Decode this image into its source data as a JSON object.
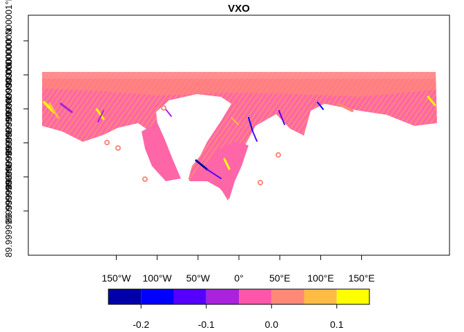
{
  "map": {
    "title": "VXO",
    "x_ticks": [
      {
        "value": -150,
        "label": "150°W"
      },
      {
        "value": -100,
        "label": "100°W"
      },
      {
        "value": -50,
        "label": "50°W"
      },
      {
        "value": 0,
        "label": "0°"
      },
      {
        "value": 50,
        "label": "50°E"
      },
      {
        "value": 100,
        "label": "100°E"
      },
      {
        "value": 150,
        "label": "150°E"
      }
    ],
    "y_ticks": [
      "89.99999999999998°N",
      "89.99999999999999°N",
      "89.99999999999999°N",
      "89.99999999999999°N",
      "90.00000000000000°N",
      "90.00000000000001°N"
    ],
    "legend": {
      "breaks": [
        -0.25,
        -0.2,
        -0.15,
        -0.1,
        -0.05,
        0.0,
        0.05,
        0.1,
        0.15
      ],
      "tick_values": [
        -0.2,
        -0.1,
        0.0,
        0.1
      ],
      "tick_labels": [
        "-0.2",
        "-0.1",
        "0.0",
        "0.1"
      ],
      "colors": [
        "#0000AA",
        "#0000FF",
        "#5500FF",
        "#AA22DD",
        "#FF55AA",
        "#FF8877",
        "#FFBB44",
        "#FFFF00"
      ]
    }
  }
}
